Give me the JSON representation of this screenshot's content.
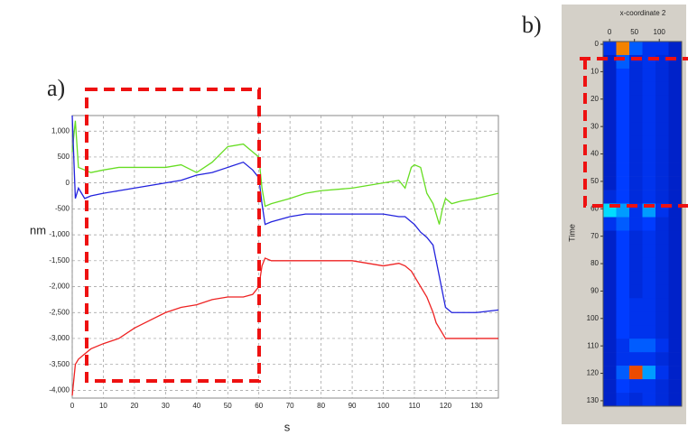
{
  "chart_data": [
    {
      "type": "line",
      "panel_label": "a)",
      "xlabel": "s",
      "ylabel": "nm",
      "x": [
        0,
        1,
        2,
        4,
        6,
        10,
        15,
        20,
        25,
        30,
        35,
        40,
        45,
        50,
        55,
        58,
        60,
        61,
        62,
        64,
        70,
        75,
        80,
        90,
        100,
        105,
        107,
        109,
        110,
        112,
        114,
        116,
        117,
        118,
        119,
        120,
        122,
        125,
        130,
        137
      ],
      "series": [
        {
          "color": "#66dd22",
          "values": [
            600,
            1200,
            300,
            250,
            200,
            250,
            300,
            300,
            300,
            300,
            350,
            200,
            400,
            700,
            750,
            600,
            500,
            -100,
            -450,
            -400,
            -300,
            -200,
            -150,
            -100,
            0,
            50,
            -100,
            300,
            350,
            300,
            -200,
            -400,
            -600,
            -800,
            -500,
            -300,
            -400,
            -350,
            -300,
            -200
          ]
        },
        {
          "color": "#2222dd",
          "values": [
            1300,
            -300,
            -100,
            -300,
            -250,
            -200,
            -150,
            -100,
            -50,
            0,
            50,
            150,
            200,
            300,
            400,
            250,
            100,
            -400,
            -800,
            -750,
            -650,
            -600,
            -600,
            -600,
            -600,
            -650,
            -650,
            -750,
            -800,
            -950,
            -1050,
            -1200,
            -1500,
            -1800,
            -2100,
            -2400,
            -2500,
            -2500,
            -2500,
            -2450
          ]
        },
        {
          "color": "#ee2222",
          "values": [
            -4100,
            -3500,
            -3400,
            -3300,
            -3200,
            -3100,
            -3000,
            -2800,
            -2650,
            -2500,
            -2400,
            -2350,
            -2250,
            -2200,
            -2200,
            -2150,
            -2000,
            -1600,
            -1450,
            -1500,
            -1500,
            -1500,
            -1500,
            -1500,
            -1600,
            -1550,
            -1600,
            -1700,
            -1800,
            -2000,
            -2200,
            -2500,
            -2700,
            -2800,
            -2900,
            -3000,
            -3000,
            -3000,
            -3000,
            -3000
          ]
        }
      ],
      "xlim": [
        0,
        137
      ],
      "xticks": [
        0,
        10,
        20,
        30,
        40,
        50,
        60,
        70,
        80,
        90,
        100,
        110,
        120,
        130
      ],
      "ylim": [
        -4150,
        1300
      ],
      "yticks": [
        {
          "value": 1000,
          "label": "1,000"
        },
        500,
        0,
        -500,
        {
          "value": -1000,
          "label": "-1,000"
        },
        {
          "value": -1500,
          "label": "-1,500"
        },
        {
          "value": -2000,
          "label": "-2,000"
        },
        {
          "value": -2500,
          "label": "-2,500"
        },
        {
          "value": -3000,
          "label": "-3,000"
        },
        {
          "value": -3500,
          "label": "-3,500"
        },
        {
          "value": -4000,
          "label": "-4,000"
        }
      ],
      "grid": true
    },
    {
      "type": "heatmap",
      "panel_label": "b)",
      "xlabel": "x-coordinate 2",
      "ylabel": "Time",
      "xlim": [
        -13,
        145
      ],
      "xticks": [
        0,
        50,
        100
      ],
      "ylim": [
        -1,
        132
      ],
      "yticks": [
        0,
        10,
        20,
        30,
        40,
        50,
        60,
        70,
        80,
        90,
        100,
        110,
        120,
        130
      ],
      "z": [
        [
          0.3,
          0.9,
          0.4,
          0.3,
          0.3,
          0.2
        ],
        [
          0.2,
          0.4,
          0.25,
          0.3,
          0.25,
          0.2
        ],
        [
          0.2,
          0.35,
          0.25,
          0.3,
          0.25,
          0.2
        ],
        [
          0.2,
          0.35,
          0.25,
          0.3,
          0.25,
          0.2
        ],
        [
          0.2,
          0.35,
          0.25,
          0.3,
          0.25,
          0.2
        ],
        [
          0.2,
          0.35,
          0.25,
          0.3,
          0.25,
          0.2
        ],
        [
          0.2,
          0.35,
          0.25,
          0.3,
          0.25,
          0.2
        ],
        [
          0.2,
          0.35,
          0.25,
          0.3,
          0.25,
          0.2
        ],
        [
          0.2,
          0.35,
          0.25,
          0.3,
          0.25,
          0.2
        ],
        [
          0.2,
          0.35,
          0.25,
          0.3,
          0.25,
          0.2
        ],
        [
          0.2,
          0.35,
          0.25,
          0.3,
          0.25,
          0.2
        ],
        [
          0.25,
          0.35,
          0.25,
          0.3,
          0.25,
          0.2
        ],
        [
          0.6,
          0.5,
          0.3,
          0.5,
          0.3,
          0.2
        ],
        [
          0.3,
          0.4,
          0.3,
          0.35,
          0.25,
          0.2
        ],
        [
          0.2,
          0.35,
          0.25,
          0.3,
          0.25,
          0.2
        ],
        [
          0.2,
          0.35,
          0.25,
          0.3,
          0.25,
          0.2
        ],
        [
          0.2,
          0.35,
          0.25,
          0.3,
          0.25,
          0.2
        ],
        [
          0.2,
          0.35,
          0.25,
          0.3,
          0.25,
          0.2
        ],
        [
          0.2,
          0.35,
          0.25,
          0.3,
          0.25,
          0.2
        ],
        [
          0.2,
          0.35,
          0.3,
          0.3,
          0.25,
          0.2
        ],
        [
          0.2,
          0.35,
          0.3,
          0.3,
          0.25,
          0.2
        ],
        [
          0.2,
          0.35,
          0.3,
          0.3,
          0.25,
          0.2
        ],
        [
          0.2,
          0.3,
          0.4,
          0.4,
          0.3,
          0.2
        ],
        [
          0.2,
          0.3,
          0.3,
          0.3,
          0.25,
          0.2
        ],
        [
          0.2,
          0.4,
          0.95,
          0.5,
          0.3,
          0.2
        ],
        [
          0.2,
          0.35,
          0.3,
          0.3,
          0.25,
          0.2
        ],
        [
          0.2,
          0.3,
          0.25,
          0.3,
          0.25,
          0.2
        ]
      ]
    }
  ]
}
